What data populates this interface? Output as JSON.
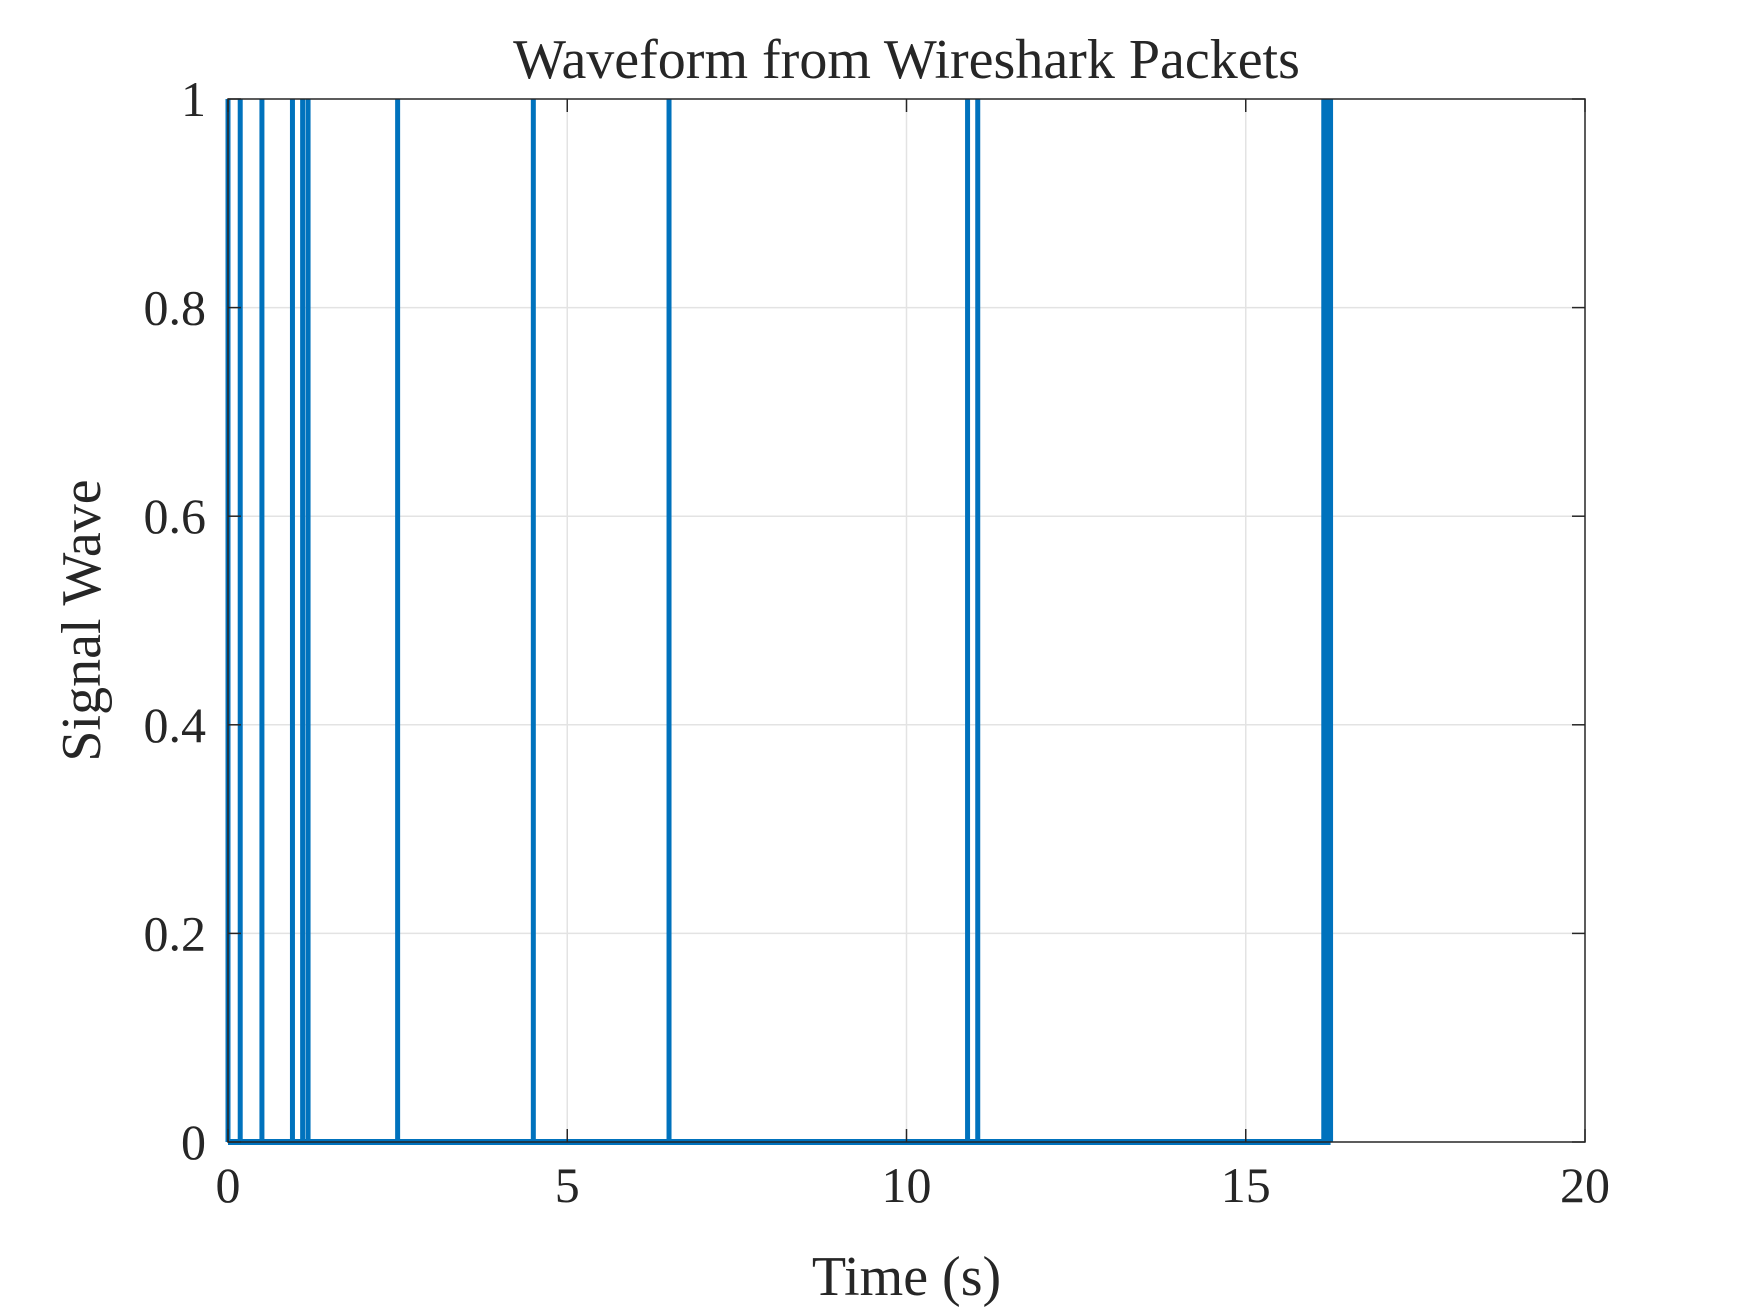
{
  "chart_data": {
    "type": "line",
    "title": "Waveform from Wireshark Packets",
    "xlabel": "Time (s)",
    "ylabel": "Signal Wave",
    "xlim": [
      0,
      20
    ],
    "ylim": [
      0,
      1
    ],
    "xticks": [
      0,
      5,
      10,
      15,
      20
    ],
    "yticks": [
      0,
      0.2,
      0.4,
      0.6,
      0.8,
      1
    ],
    "xtick_labels": [
      "0",
      "5",
      "10",
      "15",
      "20"
    ],
    "ytick_labels": [
      "0",
      "0.2",
      "0.4",
      "0.6",
      "0.8",
      "1"
    ],
    "grid": true,
    "legend": "none",
    "series": [
      {
        "color": "#0072BD",
        "pulse_times": [
          0.0,
          0.18,
          0.5,
          0.95,
          1.1,
          1.18,
          2.5,
          4.5,
          6.5,
          10.9,
          11.05,
          16.15,
          16.2,
          16.25
        ],
        "low": 0,
        "high": 1,
        "x_end": 16.25
      }
    ]
  }
}
